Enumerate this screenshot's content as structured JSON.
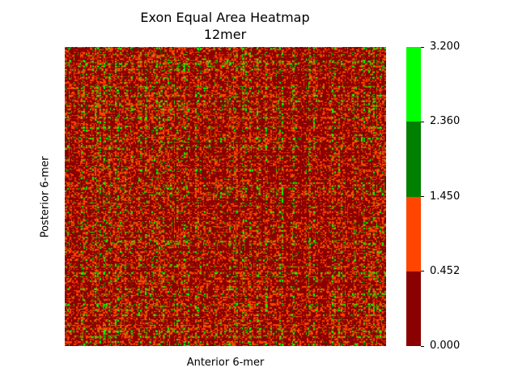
{
  "chart_data": {
    "type": "heatmap",
    "title": "Exon Equal Area Heatmap",
    "subtitle": "12mer",
    "xlabel": "Anterior 6-mer",
    "ylabel": "Posterior 6-mer",
    "colorbar": {
      "range": [
        0.0,
        3.2
      ],
      "bins": [
        {
          "from": 0.0,
          "to": 0.452,
          "color": "#8b0000"
        },
        {
          "from": 0.452,
          "to": 1.45,
          "color": "#ff4500"
        },
        {
          "from": 1.45,
          "to": 2.36,
          "color": "#008000"
        },
        {
          "from": 2.36,
          "to": 3.2,
          "color": "#00ff00"
        }
      ],
      "ticks": [
        "0.000",
        "0.452",
        "1.450",
        "2.360",
        "3.200"
      ]
    },
    "value_shares": {
      "0.000-0.452": 0.62,
      "0.452-1.450": 0.3,
      "1.450-2.360": 0.05,
      "2.360-3.200": 0.03
    },
    "x_tick_labels_shown": false,
    "y_tick_labels_shown": false,
    "grid": false
  }
}
